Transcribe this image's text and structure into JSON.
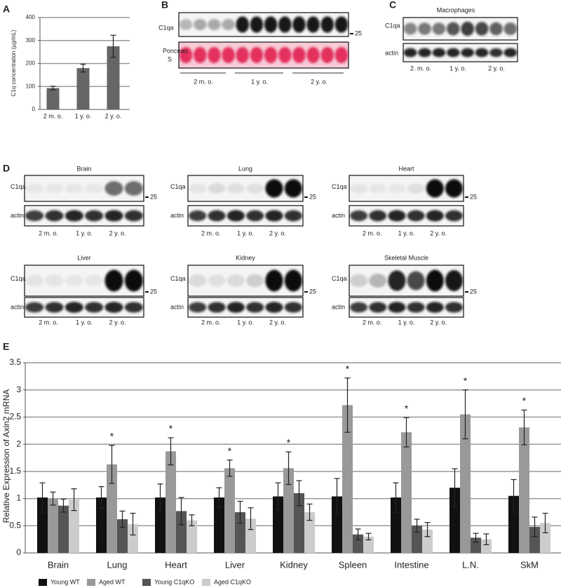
{
  "panel_labels": [
    "A",
    "B",
    "C",
    "D",
    "E"
  ],
  "chart_data": [
    {
      "type": "bar",
      "ylabel": "C1q concentration (µg/mL)",
      "categories": [
        "2 m. o.",
        "1 y. o.",
        "2 y. o."
      ],
      "values": [
        93,
        180,
        275
      ],
      "errors": [
        8,
        17,
        48
      ],
      "color": "#666666",
      "ylim": [
        0,
        400
      ],
      "yticks": [
        0,
        100,
        200,
        300,
        400
      ],
      "grid": true
    },
    {
      "type": "bar",
      "ylabel": "Relative Expression of Axin2 mRNA",
      "categories": [
        "Brain",
        "Lung",
        "Heart",
        "Liver",
        "Kidney",
        "Spleen",
        "Intestine",
        "L.N.",
        "SkM"
      ],
      "series": [
        {
          "name": "Young WT",
          "color": "#111111",
          "values": [
            1.02,
            1.02,
            1.02,
            1.02,
            1.04,
            1.04,
            1.02,
            1.2,
            1.05
          ],
          "errors": [
            0.27,
            0.2,
            0.25,
            0.18,
            0.25,
            0.33,
            0.27,
            0.35,
            0.3
          ]
        },
        {
          "name": "Aged WT",
          "color": "#999999",
          "values": [
            1.0,
            1.63,
            1.87,
            1.56,
            1.56,
            2.72,
            2.22,
            2.55,
            2.31
          ],
          "errors": [
            0.12,
            0.35,
            0.25,
            0.15,
            0.3,
            0.5,
            0.27,
            0.45,
            0.32
          ]
        },
        {
          "name": "Young C1qKO",
          "color": "#555555",
          "values": [
            0.87,
            0.62,
            0.77,
            0.75,
            1.1,
            0.34,
            0.5,
            0.28,
            0.48
          ],
          "errors": [
            0.12,
            0.15,
            0.25,
            0.2,
            0.23,
            0.1,
            0.12,
            0.08,
            0.18
          ]
        },
        {
          "name": "Aged C1qKO",
          "color": "#cccccc",
          "values": [
            0.98,
            0.53,
            0.6,
            0.63,
            0.75,
            0.3,
            0.43,
            0.25,
            0.55
          ],
          "errors": [
            0.2,
            0.2,
            0.1,
            0.2,
            0.15,
            0.06,
            0.13,
            0.1,
            0.18
          ]
        }
      ],
      "annotations": [
        {
          "text": "*",
          "category": "Lung"
        },
        {
          "text": "*",
          "category": "Heart"
        },
        {
          "text": "*",
          "category": "Liver"
        },
        {
          "text": "*",
          "category": "Kidney"
        },
        {
          "text": "*",
          "category": "Spleen"
        },
        {
          "text": "*",
          "category": "Intestine"
        },
        {
          "text": "*",
          "category": "L.N."
        },
        {
          "text": "*",
          "category": "SkM"
        }
      ],
      "ylim": [
        0,
        3.5
      ],
      "yticks": [
        0,
        0.5,
        1,
        1.5,
        2,
        2.5,
        3,
        3.5
      ],
      "grid": true
    }
  ],
  "blot_b": {
    "row_labels": [
      "C1qa",
      "Ponceau",
      "S"
    ],
    "marker": "25",
    "groups": [
      "2 m. o.",
      "1 y. o.",
      "2 y. o."
    ]
  },
  "blot_c": {
    "title": "Macrophages",
    "row_labels": [
      "C1qa",
      "actin"
    ],
    "groups": [
      "2. m. o.",
      "1 y. o.",
      "2 y. o."
    ]
  },
  "blot_d": {
    "panels": [
      {
        "title": "Brain",
        "row_labels": [
          "C1qa",
          "actin"
        ],
        "marker": "25",
        "groups": [
          "2 m. o.",
          "1 y. o.",
          "2 y. o."
        ]
      },
      {
        "title": "Lung",
        "row_labels": [
          "C1qa",
          "actin"
        ],
        "marker": "25",
        "groups": [
          "2 m. o.",
          "1 y. o.",
          "2 y. o."
        ]
      },
      {
        "title": "Heart",
        "row_labels": [
          "C1qa",
          "actin"
        ],
        "marker": "25",
        "groups": [
          "2 m. o.",
          "1 y. o.",
          "2 y. o."
        ]
      },
      {
        "title": "Liver",
        "row_labels": [
          "C1qa",
          "actin"
        ],
        "marker": "25",
        "groups": [
          "2 m. o.",
          "1 y. o.",
          "2 y. o."
        ]
      },
      {
        "title": "Kidney",
        "row_labels": [
          "C1qa",
          "actin"
        ],
        "marker": "25",
        "groups": [
          "2 m. o.",
          "1 y. o.",
          "2 y. o."
        ]
      },
      {
        "title": "Skeletal Muscle",
        "row_labels": [
          "C1qa",
          "actin"
        ],
        "marker": "25",
        "groups": [
          "2 m. o.",
          "1 y. o.",
          "2 y. o."
        ]
      }
    ]
  }
}
